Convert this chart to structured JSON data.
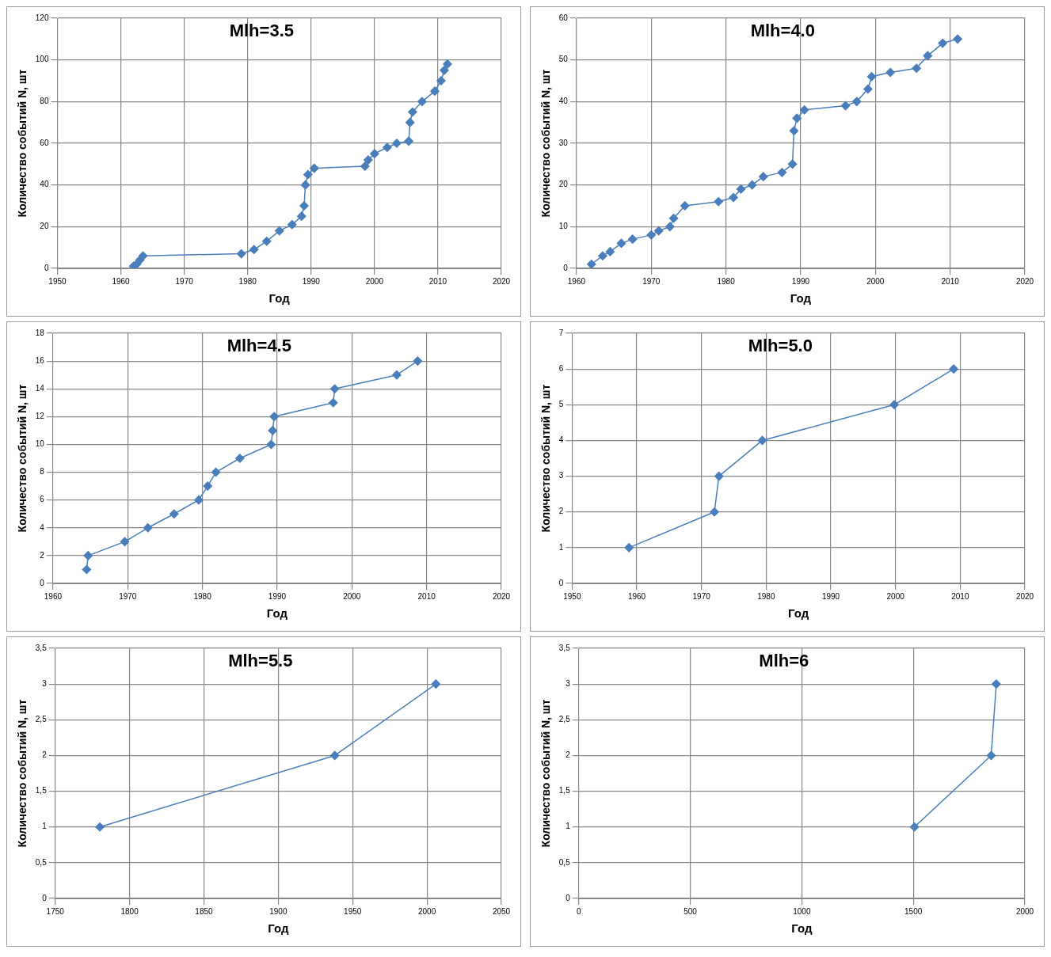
{
  "chart_data": [
    {
      "type": "line",
      "title": "Mlh=3.5",
      "xlabel": "Год",
      "ylabel": "Количество событий N, шт",
      "xlim": [
        1950,
        2020
      ],
      "xticks": [
        1950,
        1960,
        1970,
        1980,
        1990,
        2000,
        2010,
        2020
      ],
      "ylim": [
        0,
        120
      ],
      "yticks": [
        0,
        20,
        40,
        60,
        80,
        100,
        120
      ],
      "grid": true,
      "marker": "diamond",
      "line_style": "solid",
      "series": [
        {
          "color": "#4a7ebb",
          "x": [
            1962,
            1962.5,
            1963,
            1963.5,
            1979,
            1981,
            1983,
            1985,
            1987,
            1988.5,
            1988.9,
            1989.1,
            1989.5,
            1990.5,
            1998.5,
            1999,
            2000,
            2002,
            2003.5,
            2005.4,
            2005.6,
            2006,
            2007.5,
            2009.5,
            2010.5,
            2011,
            2011.5
          ],
          "values": [
            1,
            2,
            4,
            6,
            7,
            9,
            13,
            18,
            21,
            25,
            30,
            40,
            45,
            48,
            49,
            52,
            55,
            58,
            60,
            61,
            70,
            75,
            80,
            85,
            90,
            95,
            98
          ]
        }
      ]
    },
    {
      "type": "line",
      "title": "Mlh=4.0",
      "xlabel": "Год",
      "ylabel": "Количество событий N, шт",
      "xlim": [
        1960,
        2020
      ],
      "xticks": [
        1960,
        1970,
        1980,
        1990,
        2000,
        2010,
        2020
      ],
      "ylim": [
        0,
        60
      ],
      "yticks": [
        0,
        10,
        20,
        30,
        40,
        50,
        60
      ],
      "grid": true,
      "marker": "diamond",
      "line_style": "solid",
      "series": [
        {
          "color": "#4a7ebb",
          "x": [
            1962,
            1963.5,
            1964.5,
            1966,
            1967.5,
            1970,
            1971,
            1972.5,
            1973,
            1974.5,
            1979,
            1981,
            1982,
            1983.5,
            1985,
            1987.5,
            1988.9,
            1989.1,
            1989.5,
            1990.5,
            1996,
            1997.5,
            1999,
            1999.5,
            2002,
            2005.5,
            2007,
            2009,
            2011
          ],
          "values": [
            1,
            3,
            4,
            6,
            7,
            8,
            9,
            10,
            12,
            15,
            16,
            17,
            19,
            20,
            22,
            23,
            25,
            33,
            36,
            38,
            39,
            40,
            43,
            46,
            47,
            48,
            51,
            54,
            55
          ]
        }
      ]
    },
    {
      "type": "line",
      "title": "Mlh=4.5",
      "xlabel": "Год",
      "ylabel": "Количество событий N, шт",
      "xlim": [
        1960,
        2020
      ],
      "xticks": [
        1960,
        1970,
        1980,
        1990,
        2000,
        2010,
        2020
      ],
      "ylim": [
        0,
        18
      ],
      "yticks": [
        0,
        2,
        4,
        6,
        8,
        10,
        12,
        14,
        16,
        18
      ],
      "grid": true,
      "marker": "diamond",
      "line_style": "solid",
      "series": [
        {
          "color": "#4a7ebb",
          "x": [
            1964.5,
            1964.7,
            1969.6,
            1972.7,
            1976.2,
            1979.5,
            1980.7,
            1981.8,
            1985,
            1989.2,
            1989.4,
            1989.6,
            1997.5,
            1997.7,
            2006,
            2008.8
          ],
          "values": [
            1,
            2,
            3,
            4,
            5,
            6,
            7,
            8,
            9,
            10,
            11,
            12,
            13,
            14,
            15,
            16
          ]
        }
      ]
    },
    {
      "type": "line",
      "title": "Mlh=5.0",
      "xlabel": "Год",
      "ylabel": "Количество событий N, шт",
      "xlim": [
        1950,
        2020
      ],
      "xticks": [
        1950,
        1960,
        1970,
        1980,
        1990,
        2000,
        2010,
        2020
      ],
      "ylim": [
        0,
        7
      ],
      "yticks": [
        0,
        1,
        2,
        3,
        4,
        5,
        6,
        7
      ],
      "grid": true,
      "marker": "diamond",
      "line_style": "solid",
      "series": [
        {
          "color": "#4a7ebb",
          "x": [
            1958.8,
            1972,
            1972.7,
            1979.4,
            1999.8,
            2009
          ],
          "values": [
            1,
            2,
            3,
            4,
            5,
            6
          ]
        }
      ]
    },
    {
      "type": "line",
      "title": "Mlh=5.5",
      "xlabel": "Год",
      "ylabel": "Количество событий N, шт",
      "xlim": [
        1750,
        2050
      ],
      "xticks": [
        1750,
        1800,
        1850,
        1900,
        1950,
        2000,
        2050
      ],
      "ylim": [
        0,
        3.5
      ],
      "yticks": [
        0,
        {
          "value": 0.5,
          "label": "0,5"
        },
        1,
        {
          "value": 1.5,
          "label": "1,5"
        },
        2,
        {
          "value": 2.5,
          "label": "2,5"
        },
        3,
        {
          "value": 3.5,
          "label": "3,5"
        }
      ],
      "grid": true,
      "marker": "diamond",
      "line_style": "solid",
      "series": [
        {
          "color": "#4a7ebb",
          "x": [
            1780,
            1938,
            2006
          ],
          "values": [
            1,
            2,
            3
          ]
        }
      ]
    },
    {
      "type": "line",
      "title": "Mlh=6",
      "xlabel": "Год",
      "ylabel": "Количество событий N, шт",
      "xlim": [
        0,
        2000
      ],
      "xticks": [
        0,
        500,
        1000,
        1500,
        2000
      ],
      "ylim": [
        0,
        3.5
      ],
      "yticks": [
        0,
        {
          "value": 0.5,
          "label": "0,5"
        },
        1,
        {
          "value": 1.5,
          "label": "1,5"
        },
        2,
        {
          "value": 2.5,
          "label": "2,5"
        },
        3,
        {
          "value": 3.5,
          "label": "3,5"
        }
      ],
      "grid": true,
      "marker": "diamond",
      "line_style": "solid",
      "series": [
        {
          "color": "#4a7ebb",
          "x": [
            1505,
            1849,
            1872
          ],
          "values": [
            1,
            2,
            3
          ]
        }
      ]
    }
  ]
}
